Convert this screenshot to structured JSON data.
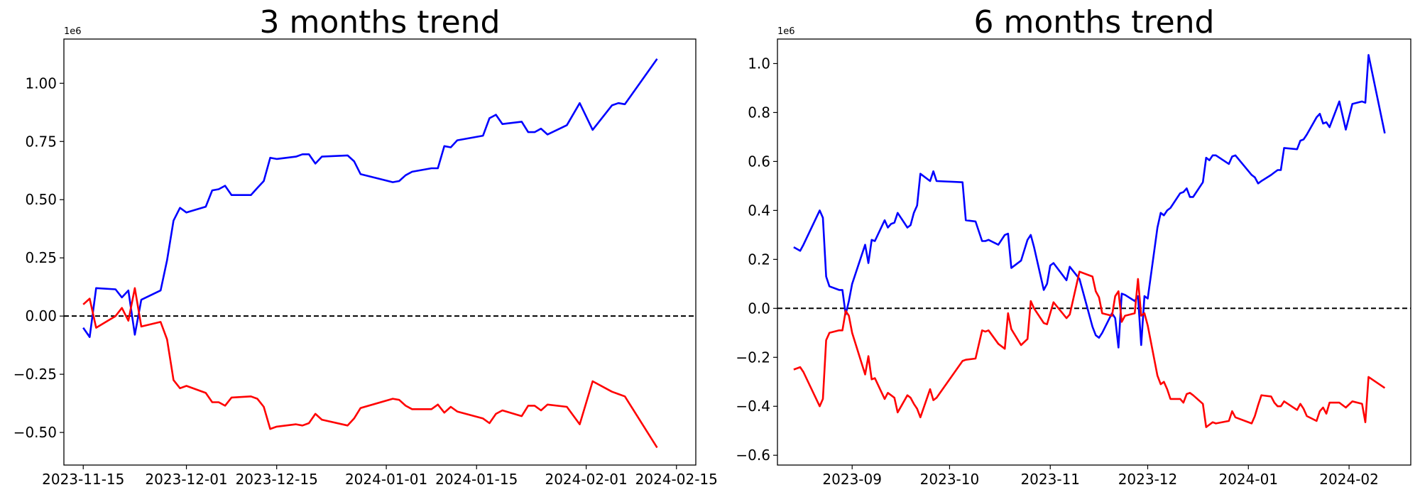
{
  "chart_data": [
    {
      "type": "line",
      "title": "3 months trend",
      "xlabel": "",
      "ylabel": "",
      "y_scale_label": "1e6",
      "x_axis_type": "date",
      "xlim": [
        "2023-11-12",
        "2024-02-18"
      ],
      "ylim": [
        -0.64,
        1.19
      ],
      "x_ticks": [
        "2023-11-15",
        "2023-12-01",
        "2023-12-15",
        "2024-01-01",
        "2024-01-15",
        "2024-02-01",
        "2024-02-15"
      ],
      "y_ticks": [
        "−0.50",
        "−0.25",
        "0.00",
        "0.25",
        "0.50",
        "0.75",
        "1.00"
      ],
      "y_tick_values": [
        -0.5,
        -0.25,
        0,
        0.25,
        0.5,
        0.75,
        1.0
      ],
      "reference_line": {
        "y": 0,
        "style": "dashed",
        "color": "#000000"
      },
      "grid": false,
      "series": [
        {
          "color": "#0000ff",
          "x": [
            "2023-11-15",
            "2023-11-16",
            "2023-11-17",
            "2023-11-20",
            "2023-11-21",
            "2023-11-22",
            "2023-11-23",
            "2023-11-24",
            "2023-11-27",
            "2023-11-28",
            "2023-11-29",
            "2023-11-30",
            "2023-12-01",
            "2023-12-04",
            "2023-12-05",
            "2023-12-06",
            "2023-12-07",
            "2023-12-08",
            "2023-12-11",
            "2023-12-12",
            "2023-12-13",
            "2023-12-14",
            "2023-12-15",
            "2023-12-18",
            "2023-12-19",
            "2023-12-20",
            "2023-12-21",
            "2023-12-22",
            "2023-12-26",
            "2023-12-27",
            "2023-12-28",
            "2024-01-02",
            "2024-01-03",
            "2024-01-04",
            "2024-01-05",
            "2024-01-08",
            "2024-01-09",
            "2024-01-10",
            "2024-01-11",
            "2024-01-12",
            "2024-01-16",
            "2024-01-17",
            "2024-01-18",
            "2024-01-19",
            "2024-01-22",
            "2024-01-23",
            "2024-01-24",
            "2024-01-25",
            "2024-01-26",
            "2024-01-29",
            "2024-01-31",
            "2024-02-02",
            "2024-02-05",
            "2024-02-06",
            "2024-02-07",
            "2024-02-12"
          ],
          "y": [
            -0.05,
            -0.09,
            0.12,
            0.115,
            0.08,
            0.11,
            -0.08,
            0.07,
            0.11,
            0.24,
            0.41,
            0.465,
            0.445,
            0.47,
            0.54,
            0.545,
            0.56,
            0.52,
            0.52,
            0.55,
            0.58,
            0.68,
            0.675,
            0.685,
            0.695,
            0.695,
            0.655,
            0.685,
            0.69,
            0.665,
            0.61,
            0.575,
            0.58,
            0.605,
            0.62,
            0.635,
            0.635,
            0.73,
            0.725,
            0.755,
            0.775,
            0.85,
            0.865,
            0.825,
            0.835,
            0.79,
            0.79,
            0.805,
            0.78,
            0.82,
            0.915,
            0.8,
            0.905,
            0.915,
            0.91,
            1.105
          ]
        },
        {
          "color": "#ff0000",
          "x": [
            "2023-11-15",
            "2023-11-16",
            "2023-11-17",
            "2023-11-20",
            "2023-11-21",
            "2023-11-22",
            "2023-11-23",
            "2023-11-24",
            "2023-11-27",
            "2023-11-28",
            "2023-11-29",
            "2023-11-30",
            "2023-12-01",
            "2023-12-04",
            "2023-12-05",
            "2023-12-06",
            "2023-12-07",
            "2023-12-08",
            "2023-12-11",
            "2023-12-12",
            "2023-12-13",
            "2023-12-14",
            "2023-12-15",
            "2023-12-18",
            "2023-12-19",
            "2023-12-20",
            "2023-12-21",
            "2023-12-22",
            "2023-12-26",
            "2023-12-27",
            "2023-12-28",
            "2024-01-02",
            "2024-01-03",
            "2024-01-04",
            "2024-01-05",
            "2024-01-08",
            "2024-01-09",
            "2024-01-10",
            "2024-01-11",
            "2024-01-12",
            "2024-01-16",
            "2024-01-17",
            "2024-01-18",
            "2024-01-19",
            "2024-01-22",
            "2024-01-23",
            "2024-01-24",
            "2024-01-25",
            "2024-01-26",
            "2024-01-29",
            "2024-01-31",
            "2024-02-02",
            "2024-02-05",
            "2024-02-06",
            "2024-02-07",
            "2024-02-12"
          ],
          "y": [
            0.05,
            0.075,
            -0.05,
            0.0,
            0.035,
            -0.02,
            0.12,
            -0.045,
            -0.025,
            -0.1,
            -0.275,
            -0.31,
            -0.3,
            -0.33,
            -0.37,
            -0.37,
            -0.385,
            -0.35,
            -0.345,
            -0.355,
            -0.39,
            -0.485,
            -0.475,
            -0.465,
            -0.47,
            -0.46,
            -0.42,
            -0.445,
            -0.47,
            -0.44,
            -0.395,
            -0.355,
            -0.36,
            -0.385,
            -0.4,
            -0.4,
            -0.38,
            -0.415,
            -0.39,
            -0.41,
            -0.44,
            -0.46,
            -0.42,
            -0.405,
            -0.43,
            -0.385,
            -0.385,
            -0.405,
            -0.38,
            -0.39,
            -0.465,
            -0.28,
            -0.325,
            -0.335,
            -0.345,
            -0.565
          ]
        }
      ]
    },
    {
      "type": "line",
      "title": "6 months trend",
      "xlabel": "",
      "ylabel": "",
      "y_scale_label": "1e6",
      "x_axis_type": "date",
      "xlim": [
        "2023-08-09",
        "2024-02-20"
      ],
      "ylim": [
        -0.64,
        1.1
      ],
      "x_ticks": [
        "2023-09",
        "2023-10",
        "2023-11",
        "2023-12",
        "2024-01",
        "2024-02"
      ],
      "y_ticks": [
        "−0.6",
        "−0.4",
        "−0.2",
        "0.0",
        "0.2",
        "0.4",
        "0.6",
        "0.8",
        "1.0"
      ],
      "y_tick_values": [
        -0.6,
        -0.4,
        -0.2,
        0,
        0.2,
        0.4,
        0.6,
        0.8,
        1.0
      ],
      "reference_line": {
        "y": 0,
        "style": "dashed",
        "color": "#000000"
      },
      "grid": false,
      "series": [
        {
          "color": "#0000ff",
          "x": [
            "2023-08-14",
            "2023-08-16",
            "2023-08-17",
            "2023-08-22",
            "2023-08-23",
            "2023-08-24",
            "2023-08-25",
            "2023-08-28",
            "2023-08-29",
            "2023-08-30",
            "2023-08-31",
            "2023-09-01",
            "2023-09-05",
            "2023-09-06",
            "2023-09-07",
            "2023-09-08",
            "2023-09-11",
            "2023-09-12",
            "2023-09-13",
            "2023-09-14",
            "2023-09-15",
            "2023-09-18",
            "2023-09-19",
            "2023-09-20",
            "2023-09-21",
            "2023-09-22",
            "2023-09-25",
            "2023-09-26",
            "2023-09-27",
            "2023-10-05",
            "2023-10-06",
            "2023-10-09",
            "2023-10-11",
            "2023-10-12",
            "2023-10-13",
            "2023-10-16",
            "2023-10-18",
            "2023-10-19",
            "2023-10-20",
            "2023-10-23",
            "2023-10-25",
            "2023-10-26",
            "2023-10-27",
            "2023-10-30",
            "2023-10-31",
            "2023-11-01",
            "2023-11-02",
            "2023-11-06",
            "2023-11-07",
            "2023-11-10",
            "2023-11-14",
            "2023-11-15",
            "2023-11-16",
            "2023-11-17",
            "2023-11-20",
            "2023-11-21",
            "2023-11-22",
            "2023-11-23",
            "2023-11-24",
            "2023-11-27",
            "2023-11-28",
            "2023-11-29",
            "2023-11-30",
            "2023-12-01",
            "2023-12-04",
            "2023-12-05",
            "2023-12-06",
            "2023-12-07",
            "2023-12-08",
            "2023-12-11",
            "2023-12-12",
            "2023-12-13",
            "2023-12-14",
            "2023-12-15",
            "2023-12-18",
            "2023-12-19",
            "2023-12-20",
            "2023-12-21",
            "2023-12-22",
            "2023-12-26",
            "2023-12-27",
            "2023-12-28",
            "2024-01-02",
            "2024-01-03",
            "2024-01-04",
            "2024-01-05",
            "2024-01-08",
            "2024-01-09",
            "2024-01-10",
            "2024-01-11",
            "2024-01-12",
            "2024-01-16",
            "2024-01-17",
            "2024-01-18",
            "2024-01-19",
            "2024-01-22",
            "2024-01-23",
            "2024-01-24",
            "2024-01-25",
            "2024-01-26",
            "2024-01-29",
            "2024-01-31",
            "2024-02-02",
            "2024-02-05",
            "2024-02-06",
            "2024-02-07",
            "2024-02-12"
          ],
          "y": [
            0.25,
            0.235,
            0.26,
            0.4,
            0.37,
            0.13,
            0.09,
            0.075,
            0.075,
            -0.025,
            0.03,
            0.1,
            0.26,
            0.185,
            0.28,
            0.275,
            0.36,
            0.33,
            0.345,
            0.35,
            0.39,
            0.33,
            0.34,
            0.39,
            0.42,
            0.55,
            0.52,
            0.56,
            0.52,
            0.515,
            0.36,
            0.355,
            0.275,
            0.275,
            0.28,
            0.26,
            0.3,
            0.305,
            0.165,
            0.195,
            0.28,
            0.3,
            0.25,
            0.075,
            0.1,
            0.175,
            0.185,
            0.115,
            0.17,
            0.12,
            -0.075,
            -0.11,
            -0.12,
            -0.1,
            -0.02,
            -0.04,
            -0.16,
            0.06,
            0.055,
            0.03,
            0.05,
            -0.15,
            0.05,
            0.04,
            0.33,
            0.39,
            0.38,
            0.4,
            0.41,
            0.47,
            0.475,
            0.49,
            0.455,
            0.455,
            0.515,
            0.615,
            0.605,
            0.625,
            0.625,
            0.59,
            0.62,
            0.625,
            0.545,
            0.535,
            0.51,
            0.52,
            0.545,
            0.555,
            0.565,
            0.565,
            0.655,
            0.65,
            0.685,
            0.69,
            0.71,
            0.78,
            0.795,
            0.755,
            0.76,
            0.74,
            0.845,
            0.73,
            0.835,
            0.845,
            0.84,
            1.035,
            0.715
          ]
        },
        {
          "color": "#ff0000",
          "x": [
            "2023-08-14",
            "2023-08-16",
            "2023-08-17",
            "2023-08-22",
            "2023-08-23",
            "2023-08-24",
            "2023-08-25",
            "2023-08-28",
            "2023-08-29",
            "2023-08-30",
            "2023-08-31",
            "2023-09-01",
            "2023-09-05",
            "2023-09-06",
            "2023-09-07",
            "2023-09-08",
            "2023-09-11",
            "2023-09-12",
            "2023-09-13",
            "2023-09-14",
            "2023-09-15",
            "2023-09-18",
            "2023-09-19",
            "2023-09-20",
            "2023-09-21",
            "2023-09-22",
            "2023-09-25",
            "2023-09-26",
            "2023-09-27",
            "2023-10-05",
            "2023-10-06",
            "2023-10-09",
            "2023-10-11",
            "2023-10-12",
            "2023-10-13",
            "2023-10-16",
            "2023-10-18",
            "2023-10-19",
            "2023-10-20",
            "2023-10-23",
            "2023-10-25",
            "2023-10-26",
            "2023-10-27",
            "2023-10-30",
            "2023-10-31",
            "2023-11-01",
            "2023-11-02",
            "2023-11-06",
            "2023-11-07",
            "2023-11-10",
            "2023-11-14",
            "2023-11-15",
            "2023-11-16",
            "2023-11-17",
            "2023-11-20",
            "2023-11-21",
            "2023-11-22",
            "2023-11-23",
            "2023-11-24",
            "2023-11-27",
            "2023-11-28",
            "2023-11-29",
            "2023-11-30",
            "2023-12-01",
            "2023-12-04",
            "2023-12-05",
            "2023-12-06",
            "2023-12-07",
            "2023-12-08",
            "2023-12-11",
            "2023-12-12",
            "2023-12-13",
            "2023-12-14",
            "2023-12-15",
            "2023-12-18",
            "2023-12-19",
            "2023-12-20",
            "2023-12-21",
            "2023-12-22",
            "2023-12-26",
            "2023-12-27",
            "2023-12-28",
            "2024-01-02",
            "2024-01-03",
            "2024-01-04",
            "2024-01-05",
            "2024-01-08",
            "2024-01-09",
            "2024-01-10",
            "2024-01-11",
            "2024-01-12",
            "2024-01-16",
            "2024-01-17",
            "2024-01-18",
            "2024-01-19",
            "2024-01-22",
            "2024-01-23",
            "2024-01-24",
            "2024-01-25",
            "2024-01-26",
            "2024-01-29",
            "2024-01-31",
            "2024-02-02",
            "2024-02-05",
            "2024-02-06",
            "2024-02-07",
            "2024-02-12"
          ],
          "y": [
            -0.25,
            -0.24,
            -0.26,
            -0.4,
            -0.37,
            -0.13,
            -0.1,
            -0.09,
            -0.09,
            -0.01,
            -0.03,
            -0.1,
            -0.27,
            -0.195,
            -0.29,
            -0.285,
            -0.37,
            -0.345,
            -0.355,
            -0.365,
            -0.425,
            -0.355,
            -0.365,
            -0.39,
            -0.41,
            -0.445,
            -0.33,
            -0.375,
            -0.365,
            -0.215,
            -0.21,
            -0.205,
            -0.09,
            -0.095,
            -0.09,
            -0.145,
            -0.165,
            -0.02,
            -0.085,
            -0.15,
            -0.125,
            0.03,
            0.0,
            -0.06,
            -0.065,
            -0.02,
            0.025,
            -0.04,
            -0.025,
            0.15,
            0.13,
            0.07,
            0.045,
            -0.02,
            -0.03,
            0.05,
            0.07,
            -0.055,
            -0.03,
            -0.02,
            0.12,
            -0.03,
            -0.02,
            -0.07,
            -0.275,
            -0.31,
            -0.3,
            -0.33,
            -0.37,
            -0.37,
            -0.385,
            -0.35,
            -0.345,
            -0.355,
            -0.39,
            -0.485,
            -0.475,
            -0.465,
            -0.47,
            -0.46,
            -0.42,
            -0.445,
            -0.47,
            -0.44,
            -0.395,
            -0.355,
            -0.36,
            -0.385,
            -0.4,
            -0.4,
            -0.38,
            -0.415,
            -0.39,
            -0.41,
            -0.44,
            -0.46,
            -0.42,
            -0.405,
            -0.43,
            -0.385,
            -0.385,
            -0.405,
            -0.38,
            -0.39,
            -0.465,
            -0.28,
            -0.325
          ]
        }
      ]
    }
  ]
}
